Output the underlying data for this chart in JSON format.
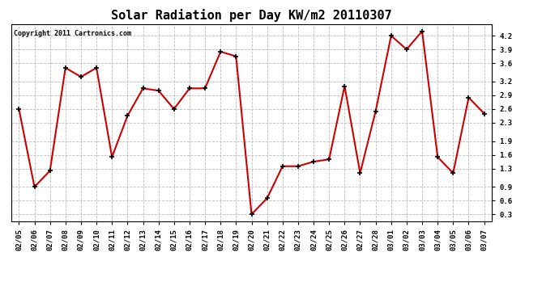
{
  "title": "Solar Radiation per Day KW/m2 20110307",
  "copyright_text": "Copyright 2011 Cartronics.com",
  "dates": [
    "02/05",
    "02/06",
    "02/07",
    "02/08",
    "02/09",
    "02/10",
    "02/11",
    "02/12",
    "02/13",
    "02/14",
    "02/15",
    "02/16",
    "02/17",
    "02/18",
    "02/19",
    "02/20",
    "02/21",
    "02/22",
    "02/23",
    "02/24",
    "02/25",
    "02/26",
    "02/27",
    "02/28",
    "03/01",
    "03/02",
    "03/03",
    "03/04",
    "03/05",
    "03/06",
    "03/07"
  ],
  "values": [
    2.6,
    0.9,
    1.25,
    3.5,
    3.3,
    3.5,
    1.55,
    2.45,
    3.05,
    3.0,
    2.6,
    3.05,
    3.05,
    3.85,
    3.75,
    0.3,
    0.65,
    1.35,
    1.35,
    1.45,
    1.5,
    3.1,
    1.2,
    2.55,
    4.2,
    3.9,
    4.3,
    1.55,
    1.2,
    2.85,
    2.5
  ],
  "line_color": "#cc0000",
  "marker": "+",
  "marker_color": "#000000",
  "marker_size": 5,
  "line_width": 1.5,
  "background_color": "#ffffff",
  "plot_bg_color": "#ffffff",
  "grid_color": "#bbbbbb",
  "grid_style": "dashed",
  "ylim": [
    0.15,
    4.45
  ],
  "yticks": [
    0.3,
    0.6,
    0.9,
    1.3,
    1.6,
    1.9,
    2.3,
    2.6,
    2.9,
    3.2,
    3.6,
    3.9,
    4.2
  ],
  "title_fontsize": 11,
  "copyright_fontsize": 6,
  "tick_fontsize": 6.5
}
